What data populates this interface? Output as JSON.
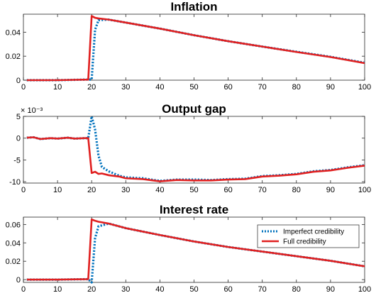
{
  "chart_data": [
    {
      "type": "line",
      "title": "Inflation",
      "xlim": [
        0,
        100
      ],
      "ylim": [
        0,
        0.055
      ],
      "x_ticks": [
        0,
        10,
        20,
        30,
        40,
        50,
        60,
        70,
        80,
        90,
        100
      ],
      "y_ticks": [
        0,
        0.02,
        0.04
      ],
      "y_tick_labels": [
        "0",
        "0.02",
        "0.04"
      ],
      "y_exponent": "",
      "legend": null,
      "series": [
        {
          "name": "Imperfect credibility",
          "color": "#0072BD",
          "style": "dotted",
          "x": [
            1,
            5,
            10,
            15,
            19,
            20,
            21,
            22,
            25,
            30,
            40,
            50,
            60,
            70,
            80,
            90,
            100
          ],
          "y": [
            0,
            0,
            0,
            0.0003,
            0.0005,
            0.0005,
            0.042,
            0.05,
            0.0505,
            0.048,
            0.043,
            0.0375,
            0.0325,
            0.028,
            0.0237,
            0.0195,
            0.0145
          ]
        },
        {
          "name": "Full credibility",
          "color": "#E02020",
          "style": "solid",
          "x": [
            1,
            5,
            10,
            15,
            19,
            20,
            21,
            22,
            25,
            30,
            40,
            50,
            60,
            70,
            80,
            90,
            100
          ],
          "y": [
            0,
            0,
            0,
            0.0003,
            0.0005,
            0.0535,
            0.052,
            0.0515,
            0.0505,
            0.048,
            0.043,
            0.0375,
            0.0325,
            0.028,
            0.0235,
            0.0193,
            0.0142
          ]
        }
      ]
    },
    {
      "type": "line",
      "title": "Output gap",
      "xlim": [
        0,
        100
      ],
      "ylim": [
        -10.3,
        5
      ],
      "x_ticks": [
        0,
        10,
        20,
        30,
        40,
        50,
        60,
        70,
        80,
        90,
        100
      ],
      "y_ticks": [
        -10,
        -5,
        0,
        5
      ],
      "y_tick_labels": [
        "-10",
        "-5",
        "0",
        "5"
      ],
      "y_exponent": "× 10⁻³",
      "legend": null,
      "series": [
        {
          "name": "Imperfect credibility",
          "color": "#0072BD",
          "style": "dotted",
          "x": [
            1,
            3,
            5,
            8,
            10,
            13,
            15,
            18,
            19,
            20,
            21,
            22,
            23,
            25,
            28,
            30,
            35,
            40,
            45,
            50,
            55,
            60,
            65,
            70,
            75,
            80,
            85,
            90,
            95,
            100
          ],
          "y": [
            0.1,
            0.2,
            -0.2,
            0,
            -0.1,
            0.1,
            -0.1,
            0,
            0,
            5,
            2,
            -4,
            -6.6,
            -7.6,
            -8.6,
            -9,
            -9.2,
            -9.8,
            -9.5,
            -9.5,
            -9.6,
            -9.4,
            -9.3,
            -8.7,
            -8.5,
            -8.2,
            -7.6,
            -7.3,
            -6.7,
            -6.2
          ]
        },
        {
          "name": "Full credibility",
          "color": "#E02020",
          "style": "solid",
          "x": [
            1,
            3,
            5,
            8,
            10,
            13,
            15,
            18,
            19,
            20,
            21,
            22,
            23,
            25,
            28,
            30,
            35,
            40,
            45,
            50,
            55,
            60,
            65,
            70,
            75,
            80,
            85,
            90,
            95,
            100
          ],
          "y": [
            0.1,
            0.2,
            -0.2,
            0,
            -0.1,
            0.1,
            -0.1,
            0,
            0,
            -8,
            -7.7,
            -8.2,
            -8.1,
            -8.5,
            -8.8,
            -9.2,
            -9.4,
            -9.9,
            -9.6,
            -9.7,
            -9.7,
            -9.5,
            -9.4,
            -8.8,
            -8.6,
            -8.3,
            -7.7,
            -7.4,
            -6.8,
            -6.3
          ]
        }
      ]
    },
    {
      "type": "line",
      "title": "Interest rate",
      "xlim": [
        0,
        100
      ],
      "ylim": [
        -0.003,
        0.068
      ],
      "x_ticks": [
        0,
        10,
        20,
        30,
        40,
        50,
        60,
        70,
        80,
        90,
        100
      ],
      "y_ticks": [
        0,
        0.02,
        0.04,
        0.06
      ],
      "y_tick_labels": [
        "0",
        "0.02",
        "0.04",
        "0.06"
      ],
      "y_exponent": "",
      "legend": {
        "position": "center-right",
        "entries": [
          "Imperfect credibility",
          "Full credibility"
        ]
      },
      "series": [
        {
          "name": "Imperfect credibility",
          "color": "#0072BD",
          "style": "dotted",
          "x": [
            1,
            5,
            10,
            15,
            19,
            20,
            21,
            22,
            25,
            30,
            40,
            50,
            60,
            70,
            80,
            90,
            100
          ],
          "y": [
            0,
            0,
            0,
            0.0003,
            0.0005,
            -0.003,
            0.045,
            0.058,
            0.061,
            0.056,
            0.0485,
            0.0415,
            0.0355,
            0.0305,
            0.0255,
            0.0205,
            0.0145
          ]
        },
        {
          "name": "Full credibility",
          "color": "#E02020",
          "style": "solid",
          "x": [
            1,
            5,
            10,
            15,
            19,
            20,
            21,
            22,
            25,
            30,
            40,
            50,
            60,
            70,
            80,
            90,
            100
          ],
          "y": [
            0,
            0,
            0,
            0.0003,
            0.0005,
            0.0655,
            0.064,
            0.063,
            0.061,
            0.056,
            0.0485,
            0.0415,
            0.0355,
            0.0305,
            0.0255,
            0.0205,
            0.0145
          ]
        }
      ]
    }
  ]
}
